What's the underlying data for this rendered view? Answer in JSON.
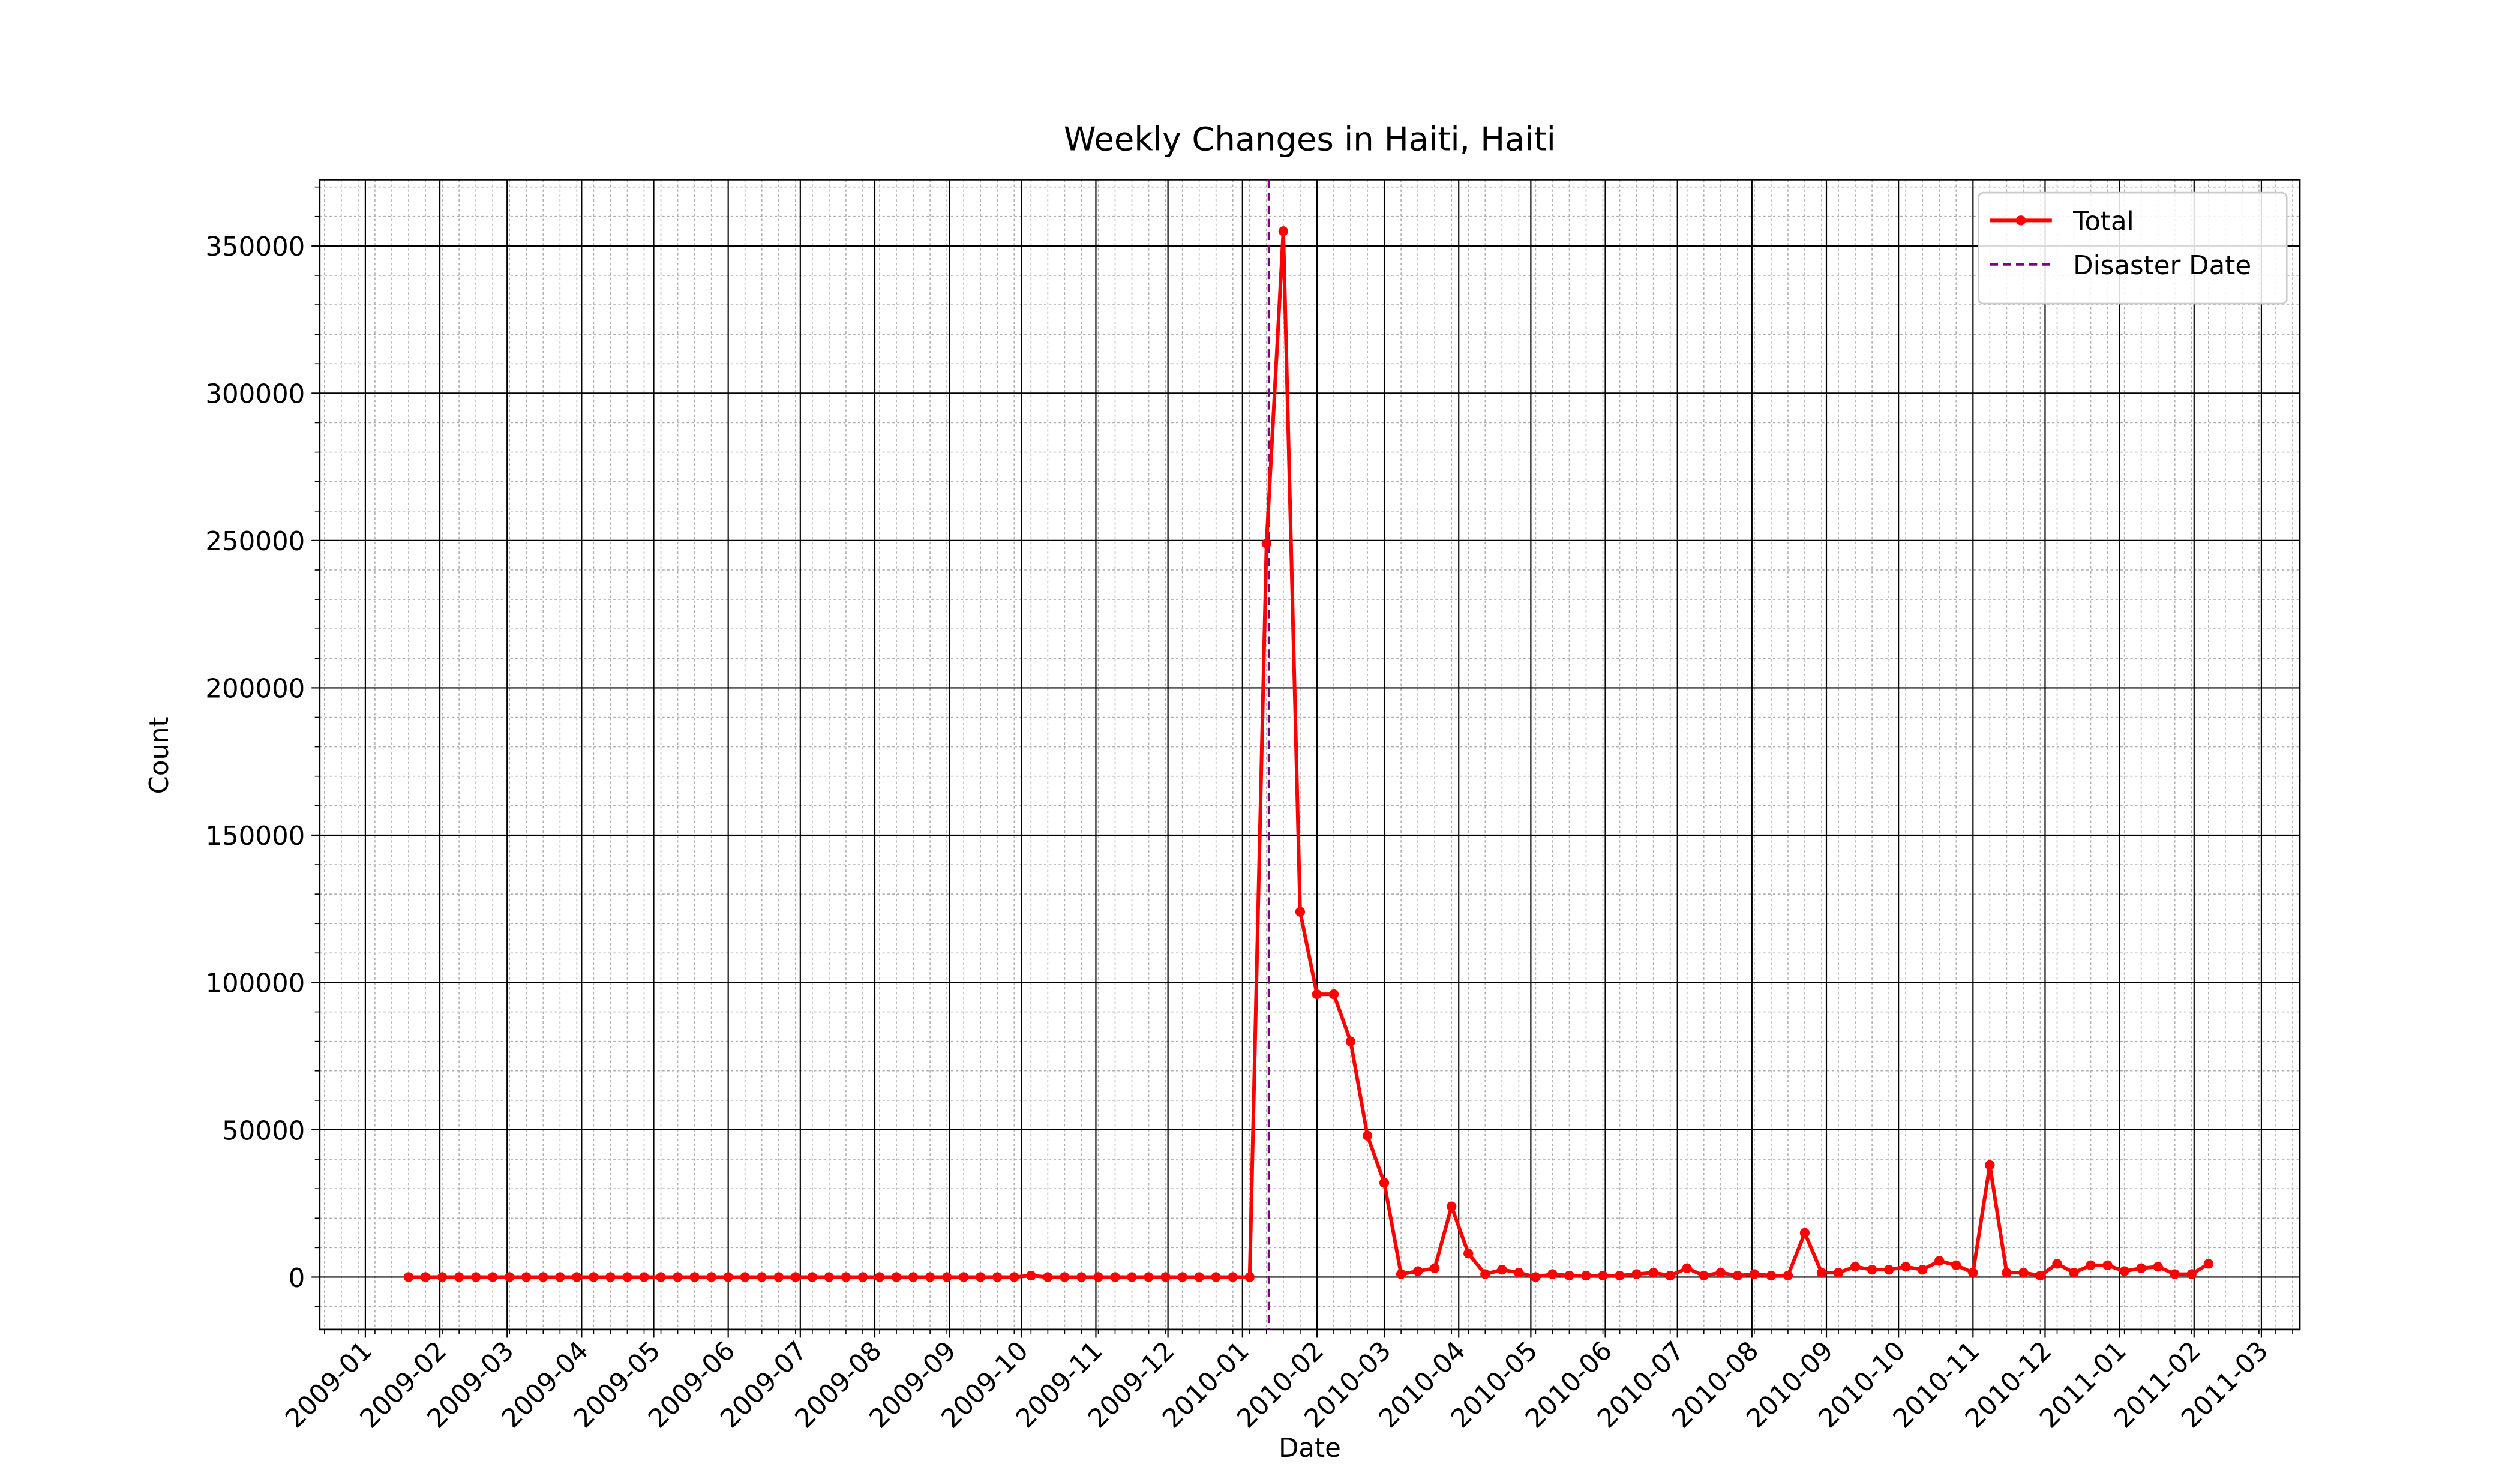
{
  "chart_data": {
    "type": "line",
    "title": "Weekly Changes in Haiti, Haiti",
    "x_label": "Date",
    "y_label": "Count",
    "x": [
      "2009-01-19",
      "2009-01-26",
      "2009-02-02",
      "2009-02-09",
      "2009-02-16",
      "2009-02-23",
      "2009-03-02",
      "2009-03-09",
      "2009-03-16",
      "2009-03-23",
      "2009-03-30",
      "2009-04-06",
      "2009-04-13",
      "2009-04-20",
      "2009-04-27",
      "2009-05-04",
      "2009-05-11",
      "2009-05-18",
      "2009-05-25",
      "2009-06-01",
      "2009-06-08",
      "2009-06-15",
      "2009-06-22",
      "2009-06-29",
      "2009-07-06",
      "2009-07-13",
      "2009-07-20",
      "2009-07-27",
      "2009-08-03",
      "2009-08-10",
      "2009-08-17",
      "2009-08-24",
      "2009-08-31",
      "2009-09-07",
      "2009-09-14",
      "2009-09-21",
      "2009-09-28",
      "2009-10-05",
      "2009-10-12",
      "2009-10-19",
      "2009-10-26",
      "2009-11-02",
      "2009-11-09",
      "2009-11-16",
      "2009-11-23",
      "2009-11-30",
      "2009-12-07",
      "2009-12-14",
      "2009-12-21",
      "2009-12-28",
      "2010-01-04",
      "2010-01-11",
      "2010-01-18",
      "2010-01-25",
      "2010-02-01",
      "2010-02-08",
      "2010-02-15",
      "2010-02-22",
      "2010-03-01",
      "2010-03-08",
      "2010-03-15",
      "2010-03-22",
      "2010-03-29",
      "2010-04-05",
      "2010-04-12",
      "2010-04-19",
      "2010-04-26",
      "2010-05-03",
      "2010-05-10",
      "2010-05-17",
      "2010-05-24",
      "2010-05-31",
      "2010-06-07",
      "2010-06-14",
      "2010-06-21",
      "2010-06-28",
      "2010-07-05",
      "2010-07-12",
      "2010-07-19",
      "2010-07-26",
      "2010-08-02",
      "2010-08-09",
      "2010-08-16",
      "2010-08-23",
      "2010-08-30",
      "2010-09-06",
      "2010-09-13",
      "2010-09-20",
      "2010-09-27",
      "2010-10-04",
      "2010-10-11",
      "2010-10-18",
      "2010-10-25",
      "2010-11-01",
      "2010-11-08",
      "2010-11-15",
      "2010-11-22",
      "2010-11-29",
      "2010-12-06",
      "2010-12-13",
      "2010-12-20",
      "2010-12-27",
      "2011-01-03",
      "2011-01-10",
      "2011-01-17",
      "2011-01-24",
      "2011-01-31",
      "2011-02-07"
    ],
    "series": [
      {
        "name": "Total",
        "color": "#ff0000",
        "values": [
          0,
          0,
          0,
          0,
          0,
          0,
          0,
          0,
          0,
          0,
          0,
          0,
          0,
          0,
          0,
          0,
          0,
          0,
          0,
          0,
          0,
          0,
          0,
          0,
          0,
          0,
          0,
          0,
          0,
          0,
          0,
          0,
          0,
          0,
          0,
          0,
          0,
          500,
          0,
          0,
          0,
          0,
          0,
          0,
          0,
          0,
          0,
          0,
          0,
          0,
          0,
          249000,
          355000,
          124000,
          96000,
          96000,
          80000,
          48000,
          32000,
          1000,
          2000,
          3000,
          24000,
          8000,
          1000,
          2500,
          1500,
          0,
          1000,
          500,
          500,
          500,
          500,
          1000,
          1500,
          500,
          3000,
          500,
          1500,
          500,
          1000,
          500,
          500,
          15000,
          1500,
          1500,
          3500,
          2500,
          2500,
          3500,
          2500,
          5500,
          4000,
          1500,
          38000,
          1500,
          1500,
          500,
          4500,
          1500,
          4000,
          4000,
          2000,
          3000,
          3500,
          1000,
          1000,
          4500
        ]
      }
    ],
    "vlines": [
      {
        "name": "Disaster Date",
        "x": "2010-01-12",
        "color": "#800080"
      }
    ],
    "xlim": [
      "2008-12-13",
      "2011-03-17"
    ],
    "xticks": [
      "2009-01",
      "2009-02",
      "2009-03",
      "2009-04",
      "2009-05",
      "2009-06",
      "2009-07",
      "2009-08",
      "2009-09",
      "2009-10",
      "2009-11",
      "2009-12",
      "2010-01",
      "2010-02",
      "2010-03",
      "2010-04",
      "2010-05",
      "2010-06",
      "2010-07",
      "2010-08",
      "2010-09",
      "2010-10",
      "2010-11",
      "2010-12",
      "2011-01",
      "2011-02",
      "2011-03"
    ],
    "ylim": [
      -17800,
      372500
    ],
    "yticks": [
      0,
      50000,
      100000,
      150000,
      200000,
      250000,
      300000,
      350000
    ],
    "grid": true,
    "legend": "upper right"
  }
}
